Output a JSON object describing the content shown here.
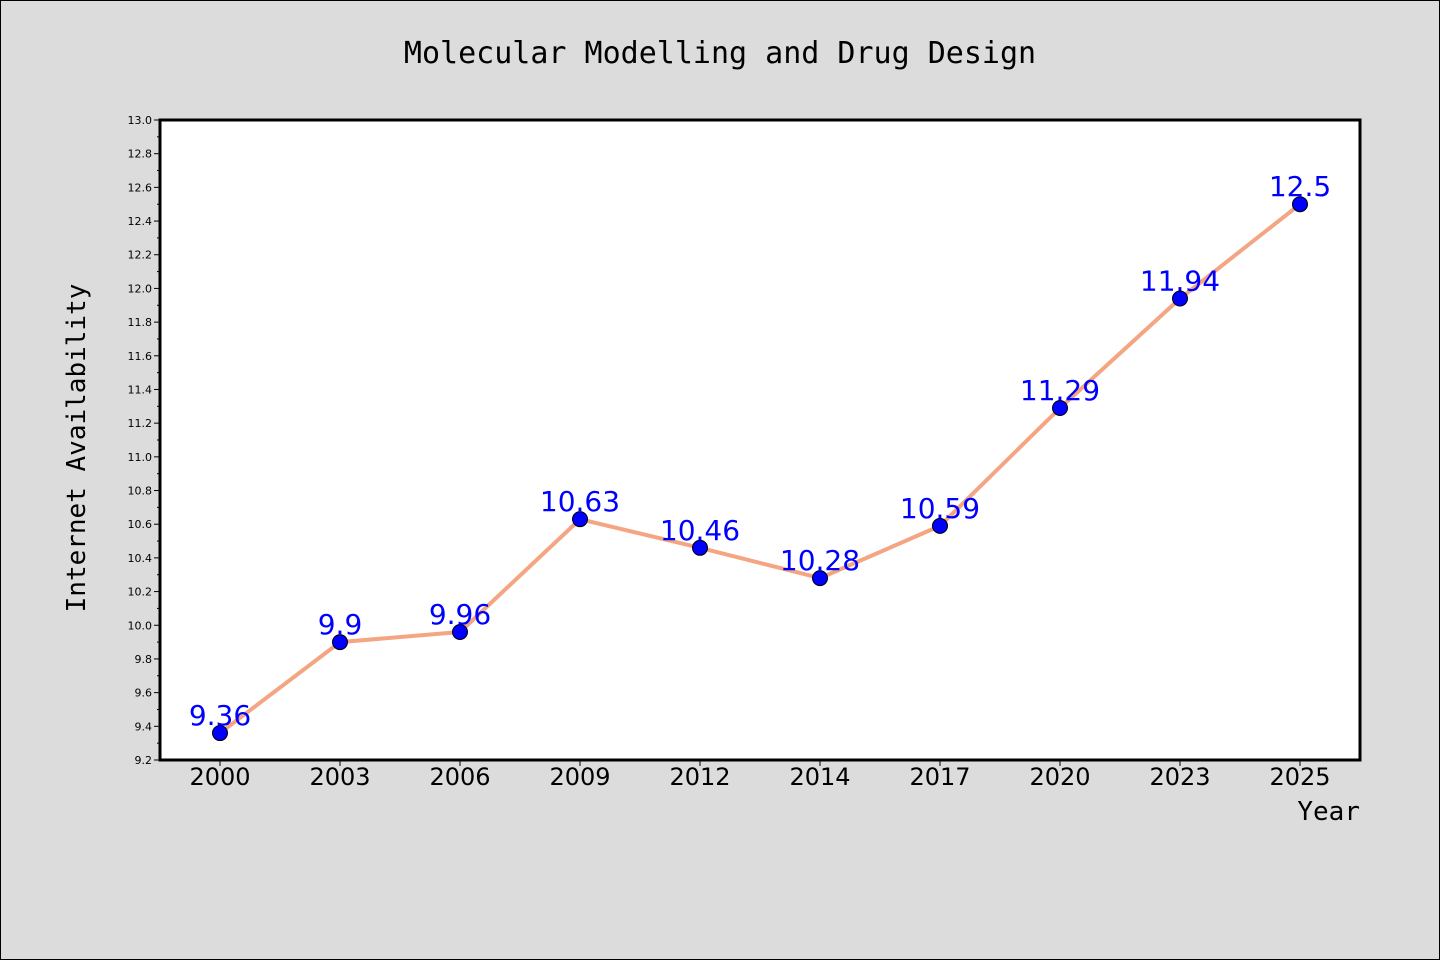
{
  "chart_data": {
    "type": "line",
    "title": "Molecular Modelling and Drug Design",
    "xlabel": "Year",
    "ylabel": "Internet Availability",
    "categories": [
      "2000",
      "2003",
      "2006",
      "2009",
      "2012",
      "2014",
      "2017",
      "2020",
      "2023",
      "2025"
    ],
    "series": [
      {
        "values": [
          9.36,
          9.9,
          9.96,
          10.63,
          10.46,
          10.28,
          10.59,
          11.29,
          11.94,
          12.5
        ],
        "labels": [
          "9.36",
          "9.9",
          "9.96",
          "10.63",
          "10.46",
          "10.28",
          "10.59",
          "11.29",
          "11.94",
          "12.5"
        ]
      }
    ],
    "ylim": [
      9.2,
      13.0
    ],
    "yticks": [
      "9.2",
      "9.4",
      "9.6",
      "9.8",
      "10.0",
      "10.2",
      "10.4",
      "10.6",
      "10.8",
      "11.0",
      "11.2",
      "11.4",
      "11.6",
      "11.8",
      "12.0",
      "12.2",
      "12.4",
      "12.6",
      "12.8",
      "13.0"
    ],
    "grid": false,
    "line_color": "#f4a582",
    "marker_color": "#0000ff",
    "label_color": "#0000ff",
    "background": "#dcdcdc",
    "plot_background": "#ffffff"
  }
}
